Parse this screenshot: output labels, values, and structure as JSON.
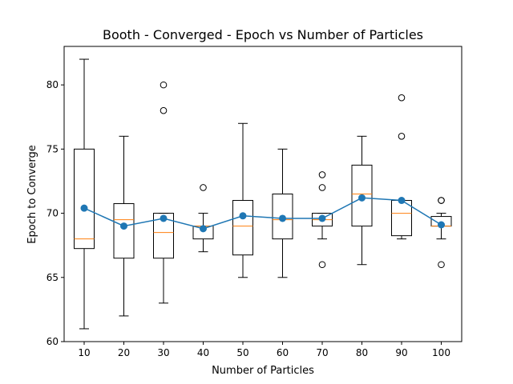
{
  "chart_data": {
    "type": "box",
    "title": "Booth - Converged - Epoch vs Number of Particles",
    "xlabel": "Number of Particles",
    "ylabel": "Epoch to Converge",
    "categories": [
      "10",
      "20",
      "30",
      "40",
      "50",
      "60",
      "70",
      "80",
      "90",
      "100"
    ],
    "ylim": [
      60,
      83
    ],
    "yticks": [
      60,
      65,
      70,
      75,
      80
    ],
    "grid": false,
    "boxes": [
      {
        "whisker_low": 61,
        "q1": 67.25,
        "median": 68,
        "q3": 75,
        "whisker_high": 82,
        "outliers": []
      },
      {
        "whisker_low": 62,
        "q1": 66.5,
        "median": 69.5,
        "q3": 70.75,
        "whisker_high": 76,
        "outliers": []
      },
      {
        "whisker_low": 63,
        "q1": 66.5,
        "median": 68.5,
        "q3": 70,
        "whisker_high": 70,
        "outliers": [
          78,
          80
        ]
      },
      {
        "whisker_low": 67,
        "q1": 68,
        "median": 69,
        "q3": 69,
        "whisker_high": 70,
        "outliers": [
          72
        ]
      },
      {
        "whisker_low": 65,
        "q1": 66.75,
        "median": 69,
        "q3": 71,
        "whisker_high": 77,
        "outliers": []
      },
      {
        "whisker_low": 65,
        "q1": 68,
        "median": 69.5,
        "q3": 71.5,
        "whisker_high": 75,
        "outliers": []
      },
      {
        "whisker_low": 68,
        "q1": 69,
        "median": 69.5,
        "q3": 70,
        "whisker_high": 70,
        "outliers": [
          66,
          72,
          73
        ]
      },
      {
        "whisker_low": 66,
        "q1": 69,
        "median": 71.5,
        "q3": 73.75,
        "whisker_high": 76,
        "outliers": []
      },
      {
        "whisker_low": 68,
        "q1": 68.25,
        "median": 70,
        "q3": 71,
        "whisker_high": 71,
        "outliers": [
          76,
          79
        ]
      },
      {
        "whisker_low": 68,
        "q1": 69,
        "median": 69,
        "q3": 69.75,
        "whisker_high": 70,
        "outliers": [
          66,
          71,
          71
        ]
      }
    ],
    "mean_line": {
      "values": [
        70.4,
        69.0,
        69.6,
        68.8,
        69.8,
        69.6,
        69.6,
        71.2,
        71.0,
        69.1
      ],
      "color": "#1f77b4"
    },
    "median_color": "#ff7f0e",
    "box_color": "#000000"
  }
}
